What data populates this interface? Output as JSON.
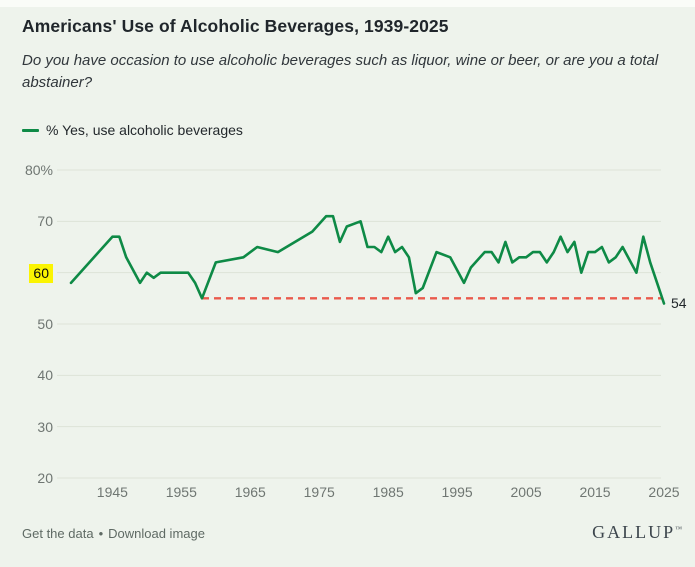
{
  "header": {
    "title": "Americans' Use of Alcoholic Beverages, 1939-2025",
    "subtitle": "Do you have occasion to use alcoholic beverages such as liquor, wine or beer, or are you a total abstainer?"
  },
  "legend": {
    "label": "% Yes, use alcoholic beverages"
  },
  "annotations": {
    "end_label": "54",
    "highlighted_y_tick": "60",
    "reference_line_meaning": "previous low of 55"
  },
  "footer": {
    "link_get_data": "Get the data",
    "separator": "•",
    "link_download": "Download image",
    "brand": "GALLUP",
    "brand_mark": "™"
  },
  "colors": {
    "line_green": "#0e8a46",
    "reference_red": "#ea5a4c",
    "highlight_yellow": "#fbf402",
    "grid_gray": "#dde3d8",
    "axis_text": "#6f7672",
    "background": "#eef3ec"
  },
  "chart_data": {
    "type": "line",
    "title": "Americans' Use of Alcoholic Beverages, 1939-2025",
    "unit": "%",
    "xlabel": "",
    "ylabel": "% Yes, use alcoholic beverages",
    "xlim": [
      1939,
      2025
    ],
    "ylim": [
      20,
      80
    ],
    "grid": true,
    "legend_position": "top-left",
    "x_ticks": [
      1945,
      1955,
      1965,
      1975,
      1985,
      1995,
      2005,
      2015,
      2025
    ],
    "y_ticks": [
      {
        "label": "80%",
        "value": 80,
        "highlight": false
      },
      {
        "label": "70",
        "value": 70,
        "highlight": false
      },
      {
        "label": "60",
        "value": 60,
        "highlight": true
      },
      {
        "label": "50",
        "value": 50,
        "highlight": false
      },
      {
        "label": "40",
        "value": 40,
        "highlight": false
      },
      {
        "label": "30",
        "value": 30,
        "highlight": false
      },
      {
        "label": "20",
        "value": 20,
        "highlight": false
      }
    ],
    "series": [
      {
        "name": "% Yes, use alcoholic beverages",
        "points": [
          [
            1939,
            58
          ],
          [
            1945,
            67
          ],
          [
            1946,
            67
          ],
          [
            1947,
            63
          ],
          [
            1949,
            58
          ],
          [
            1950,
            60
          ],
          [
            1951,
            59
          ],
          [
            1952,
            60
          ],
          [
            1956,
            60
          ],
          [
            1957,
            58
          ],
          [
            1958,
            55
          ],
          [
            1960,
            62
          ],
          [
            1964,
            63
          ],
          [
            1966,
            65
          ],
          [
            1969,
            64
          ],
          [
            1974,
            68
          ],
          [
            1976,
            71
          ],
          [
            1977,
            71
          ],
          [
            1978,
            66
          ],
          [
            1979,
            69
          ],
          [
            1981,
            70
          ],
          [
            1982,
            65
          ],
          [
            1983,
            65
          ],
          [
            1984,
            64
          ],
          [
            1985,
            67
          ],
          [
            1986,
            64
          ],
          [
            1987,
            65
          ],
          [
            1988,
            63
          ],
          [
            1989,
            56
          ],
          [
            1990,
            57
          ],
          [
            1992,
            64
          ],
          [
            1994,
            63
          ],
          [
            1996,
            58
          ],
          [
            1997,
            61
          ],
          [
            1999,
            64
          ],
          [
            2000,
            64
          ],
          [
            2001,
            62
          ],
          [
            2002,
            66
          ],
          [
            2003,
            62
          ],
          [
            2004,
            63
          ],
          [
            2005,
            63
          ],
          [
            2006,
            64
          ],
          [
            2007,
            64
          ],
          [
            2008,
            62
          ],
          [
            2009,
            64
          ],
          [
            2010,
            67
          ],
          [
            2011,
            64
          ],
          [
            2012,
            66
          ],
          [
            2013,
            60
          ],
          [
            2014,
            64
          ],
          [
            2015,
            64
          ],
          [
            2016,
            65
          ],
          [
            2017,
            62
          ],
          [
            2018,
            63
          ],
          [
            2019,
            65
          ],
          [
            2021,
            60
          ],
          [
            2022,
            67
          ],
          [
            2023,
            62
          ],
          [
            2024,
            58
          ],
          [
            2025,
            54
          ]
        ]
      }
    ],
    "reference_line": {
      "value": 55,
      "from_x": 1958,
      "style": "dashed"
    },
    "end_label": {
      "text": "54",
      "x": 2025,
      "y": 54
    }
  }
}
